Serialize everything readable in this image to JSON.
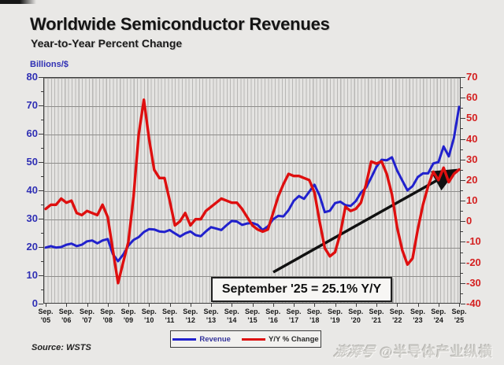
{
  "header": {
    "title": "Worldwide Semiconductor Revenues",
    "subtitle": "Year-to-Year Percent Change"
  },
  "chart_data": {
    "type": "line",
    "title": "Worldwide Semiconductor Revenues",
    "subtitle": "Year-to-Year Percent Change",
    "x_unit": "quarterly points from Sep 2005 to Sep 2025",
    "x_tick_labels": [
      "Sep. '05",
      "Sep. '06",
      "Sep. '07",
      "Sep. '08",
      "Sep. '09",
      "Sep. '10",
      "Sep. '11",
      "Sep. '12",
      "Sep. '13",
      "Sep. '14",
      "Sep. '15",
      "Sep. '16",
      "Sep. '17",
      "Sep. '18",
      "Sep. '19",
      "Sep. '20",
      "Sep. '21",
      "Sep. '22",
      "Sep. '23",
      "Sep. '24",
      "Sep. '25"
    ],
    "left_axis": {
      "label": "Billions/$",
      "min": 0,
      "max": 80,
      "ticks": [
        80,
        70,
        60,
        50,
        40,
        30,
        20,
        10,
        0
      ],
      "color": "#2f2fb4"
    },
    "right_axis": {
      "label": "Y/Y % Change",
      "min": -40,
      "max": 70,
      "ticks": [
        70,
        60,
        50,
        40,
        30,
        20,
        10,
        0,
        -10,
        -20,
        -30,
        -40
      ],
      "color": "#d42020"
    },
    "grid": {
      "horizontal_every_left_units": 10,
      "dense_vertical_lines": true
    },
    "series": [
      {
        "name": "Revenue",
        "axis": "left",
        "color": "#2121cd",
        "values": [
          19.8,
          20.3,
          19.8,
          20.0,
          20.8,
          21.2,
          20.3,
          20.8,
          22.0,
          22.3,
          21.3,
          22.3,
          22.8,
          17.5,
          15.0,
          17.3,
          20.5,
          22.5,
          23.5,
          25.3,
          26.3,
          26.2,
          25.5,
          25.3,
          26.0,
          24.8,
          23.7,
          24.8,
          25.5,
          24.2,
          23.8,
          25.5,
          27.0,
          26.5,
          26.0,
          27.7,
          29.2,
          29.0,
          27.8,
          28.3,
          28.5,
          27.8,
          26.0,
          27.3,
          29.8,
          31.0,
          30.8,
          33.0,
          36.3,
          38.0,
          37.0,
          39.5,
          42.0,
          38.2,
          32.3,
          32.8,
          35.5,
          36.0,
          34.8,
          34.5,
          36.2,
          39.2,
          41.0,
          44.5,
          48.3,
          50.8,
          50.6,
          51.7,
          47.0,
          43.5,
          40.0,
          41.5,
          44.7,
          46.0,
          46.0,
          49.5,
          50.0,
          55.5,
          52.0,
          58.5,
          69.5
        ]
      },
      {
        "name": "Y/Y % Change",
        "axis": "right",
        "color": "#de0f0f",
        "values": [
          6,
          8,
          8,
          11,
          9,
          10,
          4,
          3,
          5,
          4,
          3,
          8,
          2,
          -14,
          -30,
          -20,
          -10,
          12,
          42,
          59,
          40,
          25,
          21,
          21,
          10,
          -2,
          0,
          4,
          -2,
          1,
          1,
          5,
          7,
          9,
          11,
          10,
          9,
          9,
          6,
          2,
          -2,
          -4,
          -5,
          -4,
          4,
          12,
          18,
          23,
          22,
          22,
          21,
          20,
          14,
          0,
          -13,
          -17,
          -15,
          -6,
          7,
          5,
          6,
          9,
          18,
          29,
          28,
          29,
          23,
          13,
          -3,
          -14,
          -21,
          -18,
          -4,
          8,
          17,
          24,
          20,
          26,
          19,
          23,
          25.1
        ]
      }
    ],
    "annotation": {
      "text": "September '25 = 25.1% Y/Y",
      "points_to": "final Y/Y data point 25.1%"
    },
    "legend": {
      "position": "bottom"
    }
  },
  "source": {
    "label": "Source: WSTS"
  },
  "watermark": {
    "logo": "澎湃号",
    "handle": "@半导体产业纵横"
  }
}
